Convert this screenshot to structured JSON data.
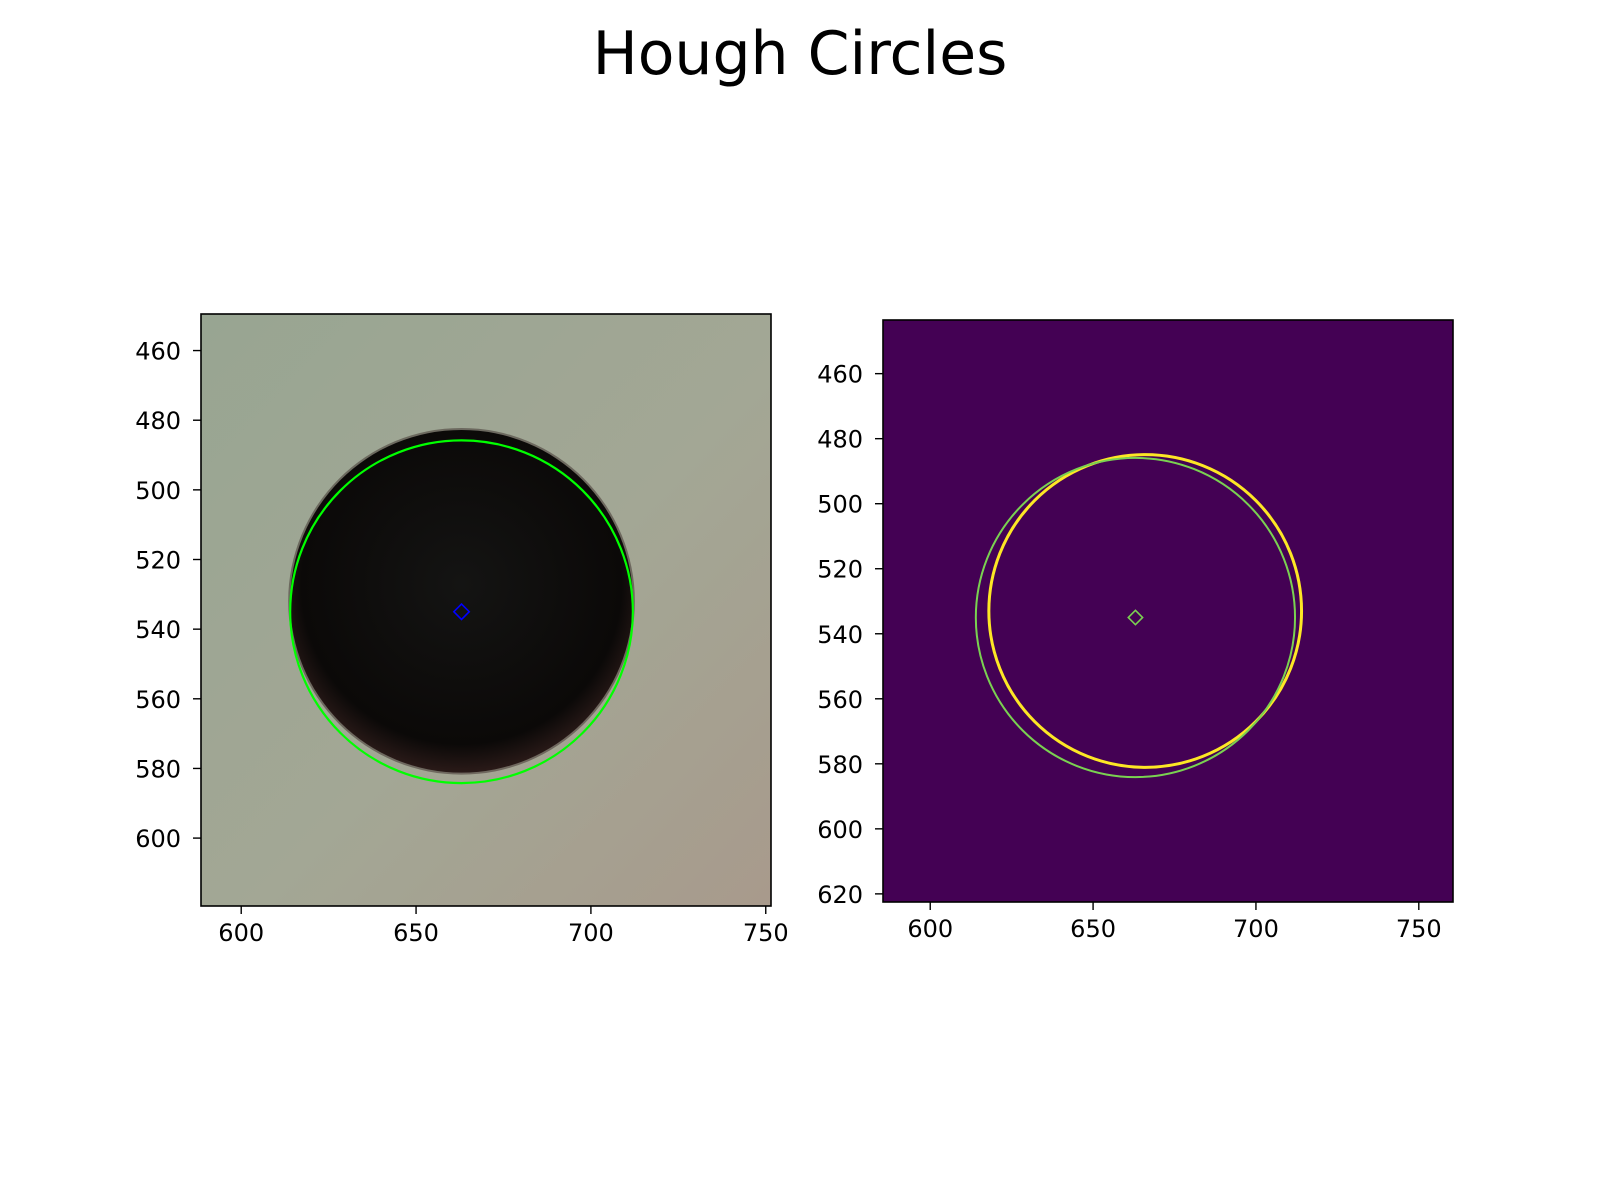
{
  "figure": {
    "title": "Hough Circles"
  },
  "chart_data": [
    {
      "type": "image",
      "panel": "left",
      "content": "original photo with detected circle overlay",
      "xlim": [
        588.5,
        751.5
      ],
      "ylim": [
        619.5,
        449.5
      ],
      "xticks": [
        600,
        650,
        700,
        750
      ],
      "yticks": [
        460,
        480,
        500,
        520,
        540,
        560,
        580,
        600
      ],
      "xtick_labels": [
        "600",
        "650",
        "700",
        "750"
      ],
      "ytick_labels": [
        "460",
        "480",
        "500",
        "520",
        "540",
        "560",
        "580",
        "600"
      ],
      "hole": {
        "cx": 663,
        "cy": 532,
        "r": 49
      },
      "detected_circle": {
        "cx": 663,
        "cy": 535,
        "r": 49,
        "color": "#00ff00"
      },
      "center_marker": {
        "x": 663,
        "y": 535,
        "color": "#0000ff"
      },
      "colors": {
        "background": "#9ea393",
        "hole": "#0b0908"
      }
    },
    {
      "type": "heatmap",
      "panel": "right",
      "content": "edge map with detected circle overlay",
      "xlim": [
        585.5,
        760.5
      ],
      "ylim": [
        622.5,
        443.5
      ],
      "xticks": [
        600,
        650,
        700,
        750
      ],
      "yticks": [
        460,
        480,
        500,
        520,
        540,
        560,
        580,
        600,
        620
      ],
      "xtick_labels": [
        "600",
        "650",
        "700",
        "750"
      ],
      "ytick_labels": [
        "460",
        "480",
        "500",
        "520",
        "540",
        "560",
        "580",
        "600",
        "620"
      ],
      "edge_circle": {
        "cx": 666,
        "cy": 533,
        "r": 48,
        "color": "#fde725"
      },
      "detected_circle": {
        "cx": 663,
        "cy": 535,
        "r": 49,
        "color": "#7ad151"
      },
      "center_marker": {
        "x": 663,
        "y": 535,
        "color": "#7ad151"
      },
      "colors": {
        "background": "#440154"
      }
    }
  ]
}
